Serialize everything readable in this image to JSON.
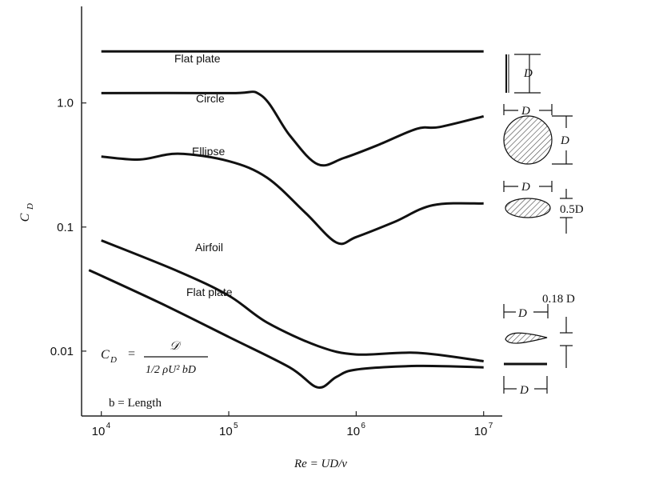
{
  "chart_data": {
    "type": "line",
    "xscale": "log",
    "yscale": "log",
    "xlim": [
      7000,
      14000000
    ],
    "ylim": [
      0.003,
      6
    ],
    "xlabel": "Re = UD/ν",
    "ylabel": "C_D",
    "x_ticks": [
      {
        "value": 10000,
        "base": "10",
        "exp": "4"
      },
      {
        "value": 100000,
        "base": "10",
        "exp": "5"
      },
      {
        "value": 1000000,
        "base": "10",
        "exp": "6"
      },
      {
        "value": 10000000,
        "base": "10",
        "exp": "7"
      }
    ],
    "y_ticks": [
      {
        "value": 1.0,
        "label": "1.0"
      },
      {
        "value": 0.1,
        "label": "0.1"
      },
      {
        "value": 0.01,
        "label": "0.01"
      }
    ],
    "grid": false,
    "series": [
      {
        "name": "Flat plate",
        "color": "#111111",
        "x": [
          10000,
          10000000
        ],
        "y": [
          2.6,
          2.6
        ]
      },
      {
        "name": "Circle",
        "color": "#111111",
        "x": [
          10000,
          100000,
          180000,
          300000,
          500000,
          800000,
          1500000,
          3000000,
          4500000,
          10000000
        ],
        "y": [
          1.2,
          1.2,
          1.15,
          0.55,
          0.32,
          0.36,
          0.46,
          0.62,
          0.64,
          0.78
        ]
      },
      {
        "name": "Ellipse",
        "color": "#111111",
        "x": [
          10000,
          20000,
          40000,
          100000,
          200000,
          400000,
          700000,
          1000000,
          2000000,
          4000000,
          10000000
        ],
        "y": [
          0.37,
          0.35,
          0.39,
          0.34,
          0.25,
          0.13,
          0.075,
          0.083,
          0.11,
          0.15,
          0.155
        ]
      },
      {
        "name": "Airfoil",
        "color": "#111111",
        "x": [
          10000,
          40000,
          100000,
          200000,
          500000,
          1000000,
          3000000,
          10000000
        ],
        "y": [
          0.078,
          0.044,
          0.028,
          0.017,
          0.011,
          0.0094,
          0.0097,
          0.0083
        ]
      },
      {
        "name": "Flat plate",
        "color": "#111111",
        "x": [
          8000,
          30000,
          100000,
          300000,
          500000,
          700000,
          1000000,
          3000000,
          10000000
        ],
        "y": [
          0.045,
          0.024,
          0.013,
          0.0074,
          0.0051,
          0.0062,
          0.0071,
          0.0076,
          0.0074
        ]
      }
    ],
    "legend": "none",
    "annotations": {
      "formula_lhs": "C",
      "formula_lhs_sub": "D",
      "formula_eq": "=",
      "formula_num": "𝒟",
      "formula_den": "1/2 ρU² bD",
      "b_label": "b = Length",
      "re_label": "Re = UD/ν",
      "dims": {
        "flat_plate": "D",
        "circle_width": "D",
        "circle_height": "D",
        "ellipse_width": "D",
        "ellipse_height": "0.5D",
        "airfoil_width": "D",
        "airfoil_thickness": "0.18 D",
        "plate_width": "D"
      }
    }
  }
}
